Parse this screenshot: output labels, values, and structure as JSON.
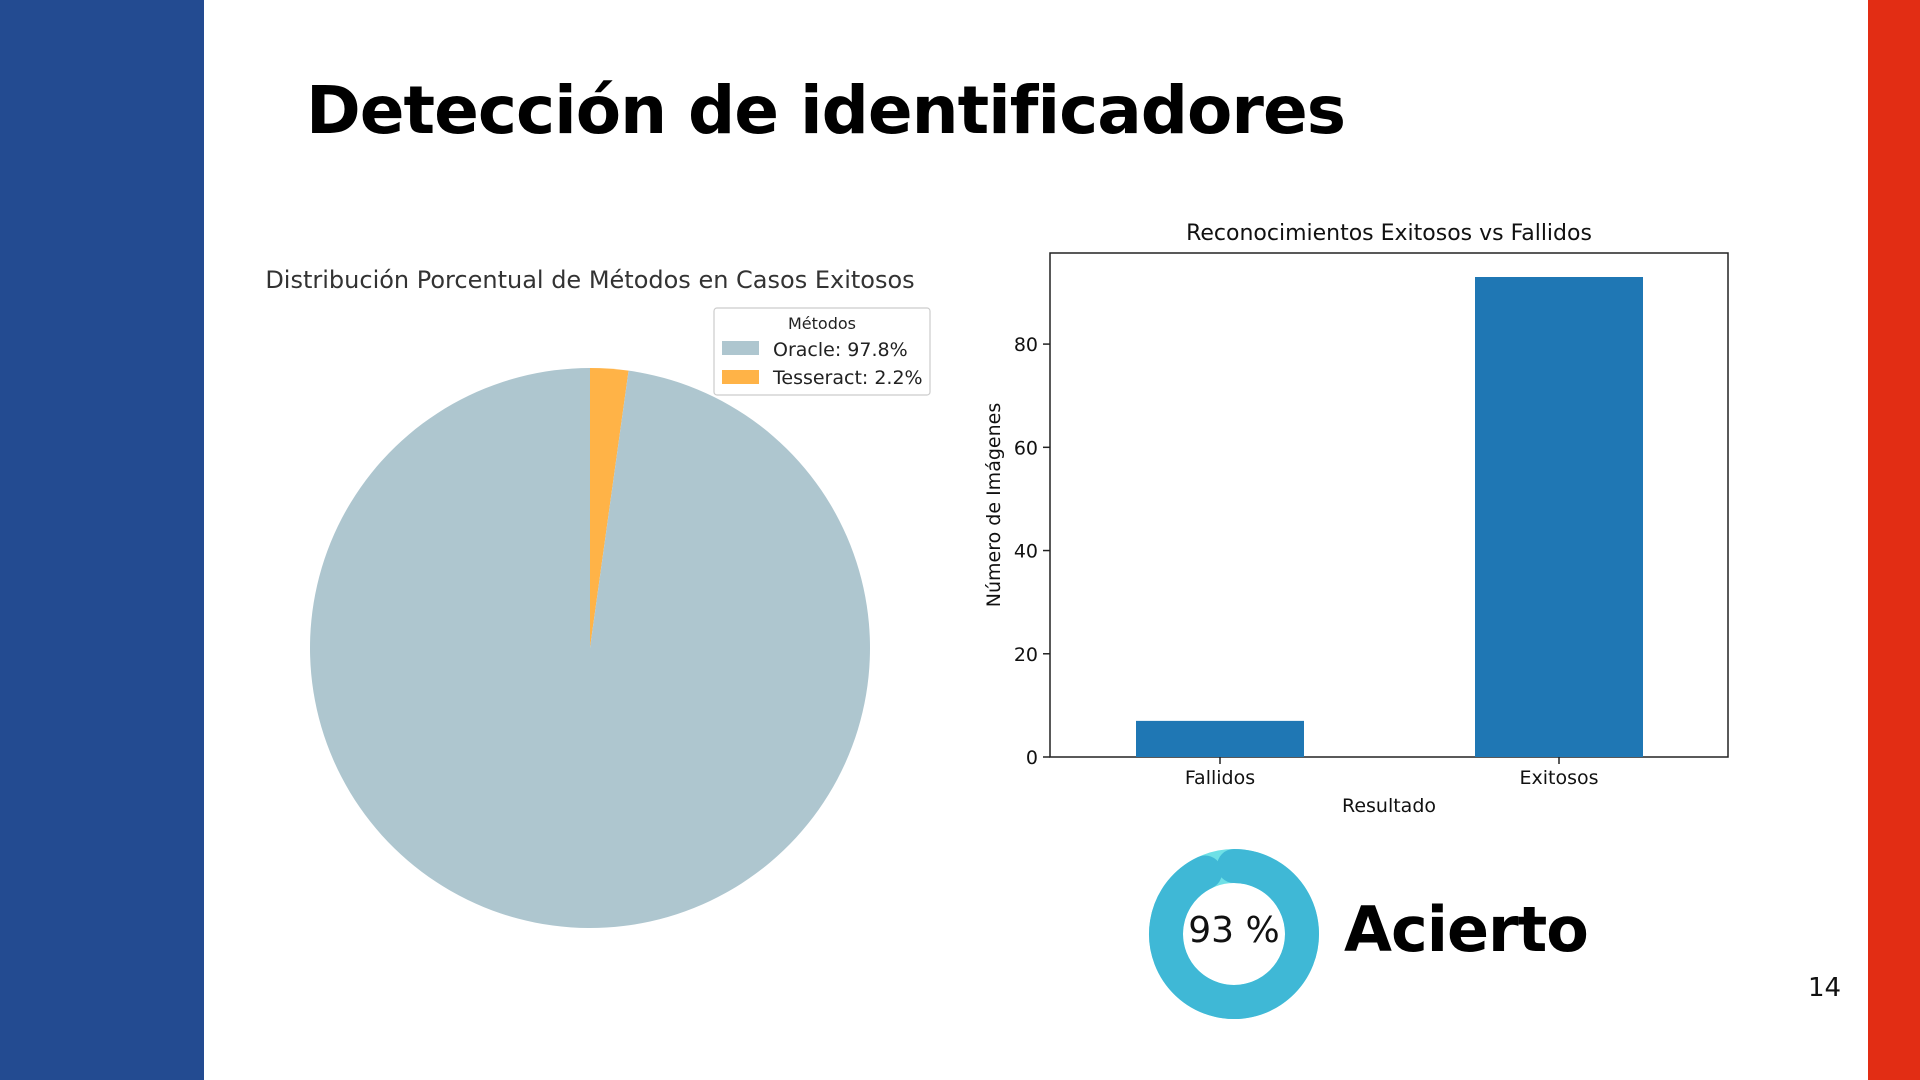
{
  "slide": {
    "title": "Detección de identificadores",
    "page_number": "14",
    "kpi": {
      "value_text": "93 %",
      "label": "Acierto",
      "fraction": 0.93
    }
  },
  "colors": {
    "left_band": "#234b91",
    "right_band": "#e22d14",
    "oracle": "#aec6cf",
    "tesseract": "#ffb347",
    "bar": "#1f77b4",
    "donut": "#3fb8d6",
    "donut_light": "#6ee0e6"
  },
  "chart_data": [
    {
      "type": "pie",
      "title": "Distribución Porcentual de Métodos en Casos Exitosos",
      "legend_title": "Métodos",
      "legend_position": "top-right",
      "slices": [
        {
          "label": "Oracle",
          "value": 97.8,
          "legend": "Oracle: 97.8%"
        },
        {
          "label": "Tesseract",
          "value": 2.2,
          "legend": "Tesseract: 2.2%"
        }
      ]
    },
    {
      "type": "bar",
      "title": "Reconocimientos Exitosos vs Fallidos",
      "xlabel": "Resultado",
      "ylabel": "Número de Imágenes",
      "categories": [
        "Fallidos",
        "Exitosos"
      ],
      "values": [
        7,
        93
      ],
      "ylim": [
        0,
        97.65
      ],
      "yticks": [
        0,
        20,
        40,
        60,
        80
      ],
      "grid": false
    }
  ]
}
